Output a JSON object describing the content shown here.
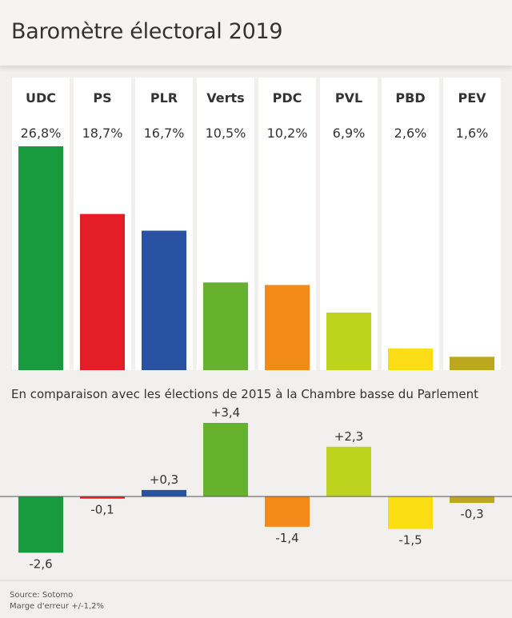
{
  "title": "Baromètre électoral 2019",
  "subtitle": "En comparaison avec les élections de 2015 à la Chambre basse du Parlement",
  "source": "Source: Sotomo",
  "margin_note": "Marge d'erreur +/-1,2%",
  "chart_data": [
    {
      "type": "bar",
      "title": "Baromètre électoral 2019",
      "categories": [
        "UDC",
        "PS",
        "PLR",
        "Verts",
        "PDC",
        "PVL",
        "PBD",
        "PEV"
      ],
      "values": [
        26.8,
        18.7,
        16.7,
        10.5,
        10.2,
        6.9,
        2.6,
        1.6
      ],
      "value_labels": [
        "26,8%",
        "18,7%",
        "16,7%",
        "10,5%",
        "10,2%",
        "6,9%",
        "2,6%",
        "1,6%"
      ],
      "colors": [
        "#189b3e",
        "#e31e26",
        "#2a52a2",
        "#66b22e",
        "#f28a1a",
        "#bed31e",
        "#fbdd14",
        "#bca71e"
      ],
      "ylim": [
        0,
        26.8
      ],
      "grid": false,
      "legend": "none"
    },
    {
      "type": "bar",
      "title": "En comparaison avec les élections de 2015 à la Chambre basse du Parlement",
      "categories": [
        "UDC",
        "PS",
        "PLR",
        "Verts",
        "PDC",
        "PVL",
        "PBD",
        "PEV"
      ],
      "values": [
        -2.6,
        -0.1,
        0.3,
        3.4,
        -1.4,
        2.3,
        -1.5,
        -0.3
      ],
      "value_labels": [
        "-2,6",
        "-0,1",
        "+0,3",
        "+3,4",
        "-1,4",
        "+2,3",
        "-1,5",
        "-0,3"
      ],
      "colors": [
        "#189b3e",
        "#e31e26",
        "#2a52a2",
        "#66b22e",
        "#f28a1a",
        "#bed31e",
        "#fbdd14",
        "#bca71e"
      ],
      "ylim": [
        -2.6,
        3.4
      ],
      "grid": false,
      "legend": "none"
    }
  ]
}
